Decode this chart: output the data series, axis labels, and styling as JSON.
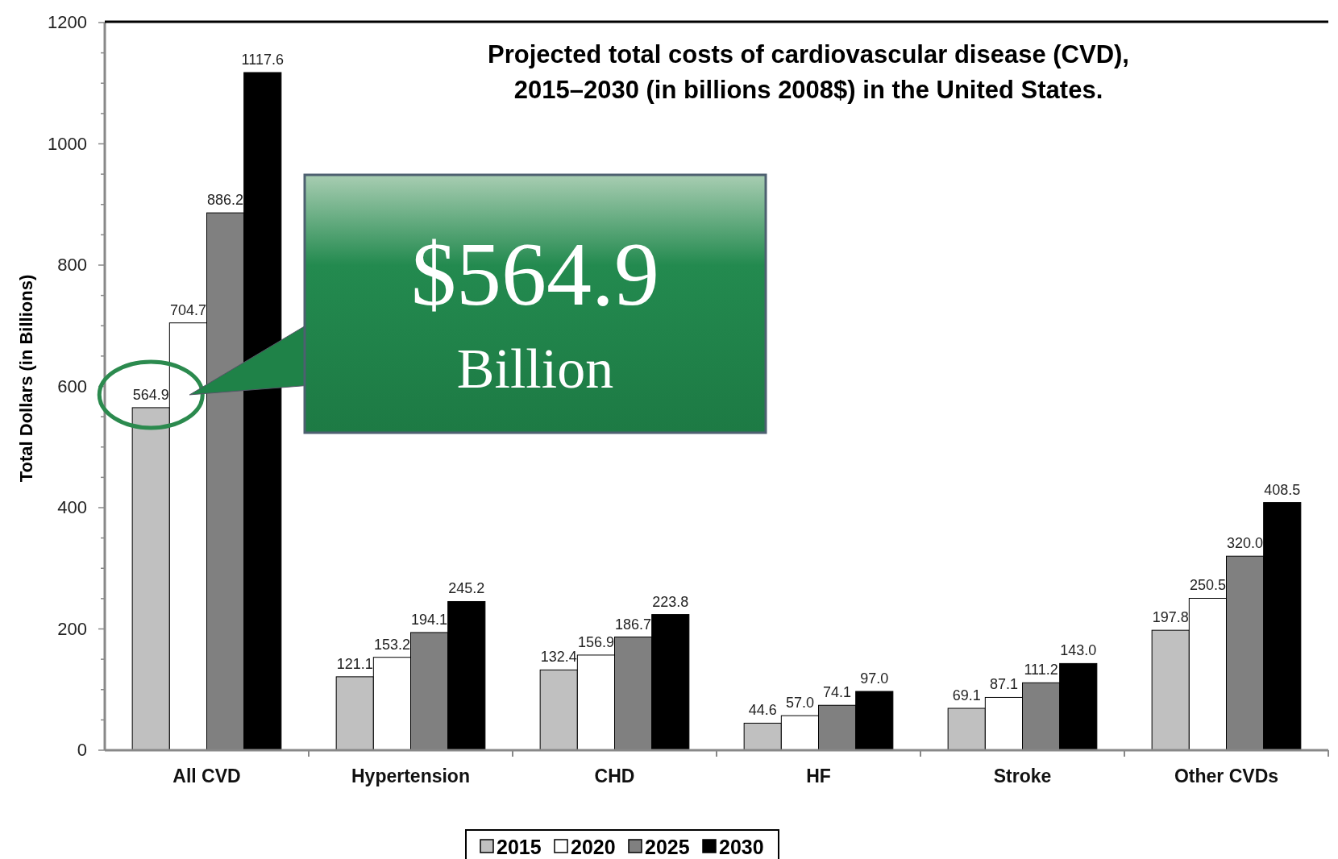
{
  "chart_data": {
    "type": "bar",
    "title": "Projected total costs of cardiovascular disease (CVD), 2015–2030 (in billions 2008$) in the United States.",
    "ylabel": "Total Dollars (in Billions)",
    "categories": [
      "All CVD",
      "Hypertension",
      "CHD",
      "HF",
      "Stroke",
      "Other CVDs"
    ],
    "series": [
      {
        "name": "2015",
        "color": "#c0c0c0",
        "values": [
          564.9,
          121.1,
          132.4,
          44.6,
          69.1,
          197.8
        ],
        "value_labels": [
          "564.9",
          "121.1",
          "132.4",
          "44.6",
          "69.1",
          "197.8"
        ]
      },
      {
        "name": "2020",
        "color": "#ffffff",
        "values": [
          704.7,
          153.2,
          156.9,
          57.0,
          87.1,
          250.5
        ],
        "value_labels": [
          "704.7",
          "153.2",
          "156.9",
          "57.0",
          "87.1",
          "250.5"
        ]
      },
      {
        "name": "2025",
        "color": "#808080",
        "values": [
          886.2,
          194.1,
          186.7,
          74.1,
          111.2,
          320.0
        ],
        "value_labels": [
          "886.2",
          "194.1",
          "186.7",
          "74.1",
          "111.2",
          "320.0"
        ]
      },
      {
        "name": "2030",
        "color": "#000000",
        "values": [
          1117.6,
          245.2,
          223.8,
          97.0,
          143.0,
          408.5
        ],
        "value_labels": [
          "1117.6",
          "245.2",
          "223.8",
          "97.0",
          "143.0",
          "408.5"
        ]
      }
    ],
    "ylim": [
      0,
      1200
    ],
    "yticks": [
      0,
      200,
      400,
      600,
      800,
      1000,
      1200
    ],
    "grid": false,
    "legend": "bottom",
    "annotations": [
      {
        "text": "$564.9 Billion",
        "x": "All CVD",
        "y": 564.9
      }
    ]
  }
}
